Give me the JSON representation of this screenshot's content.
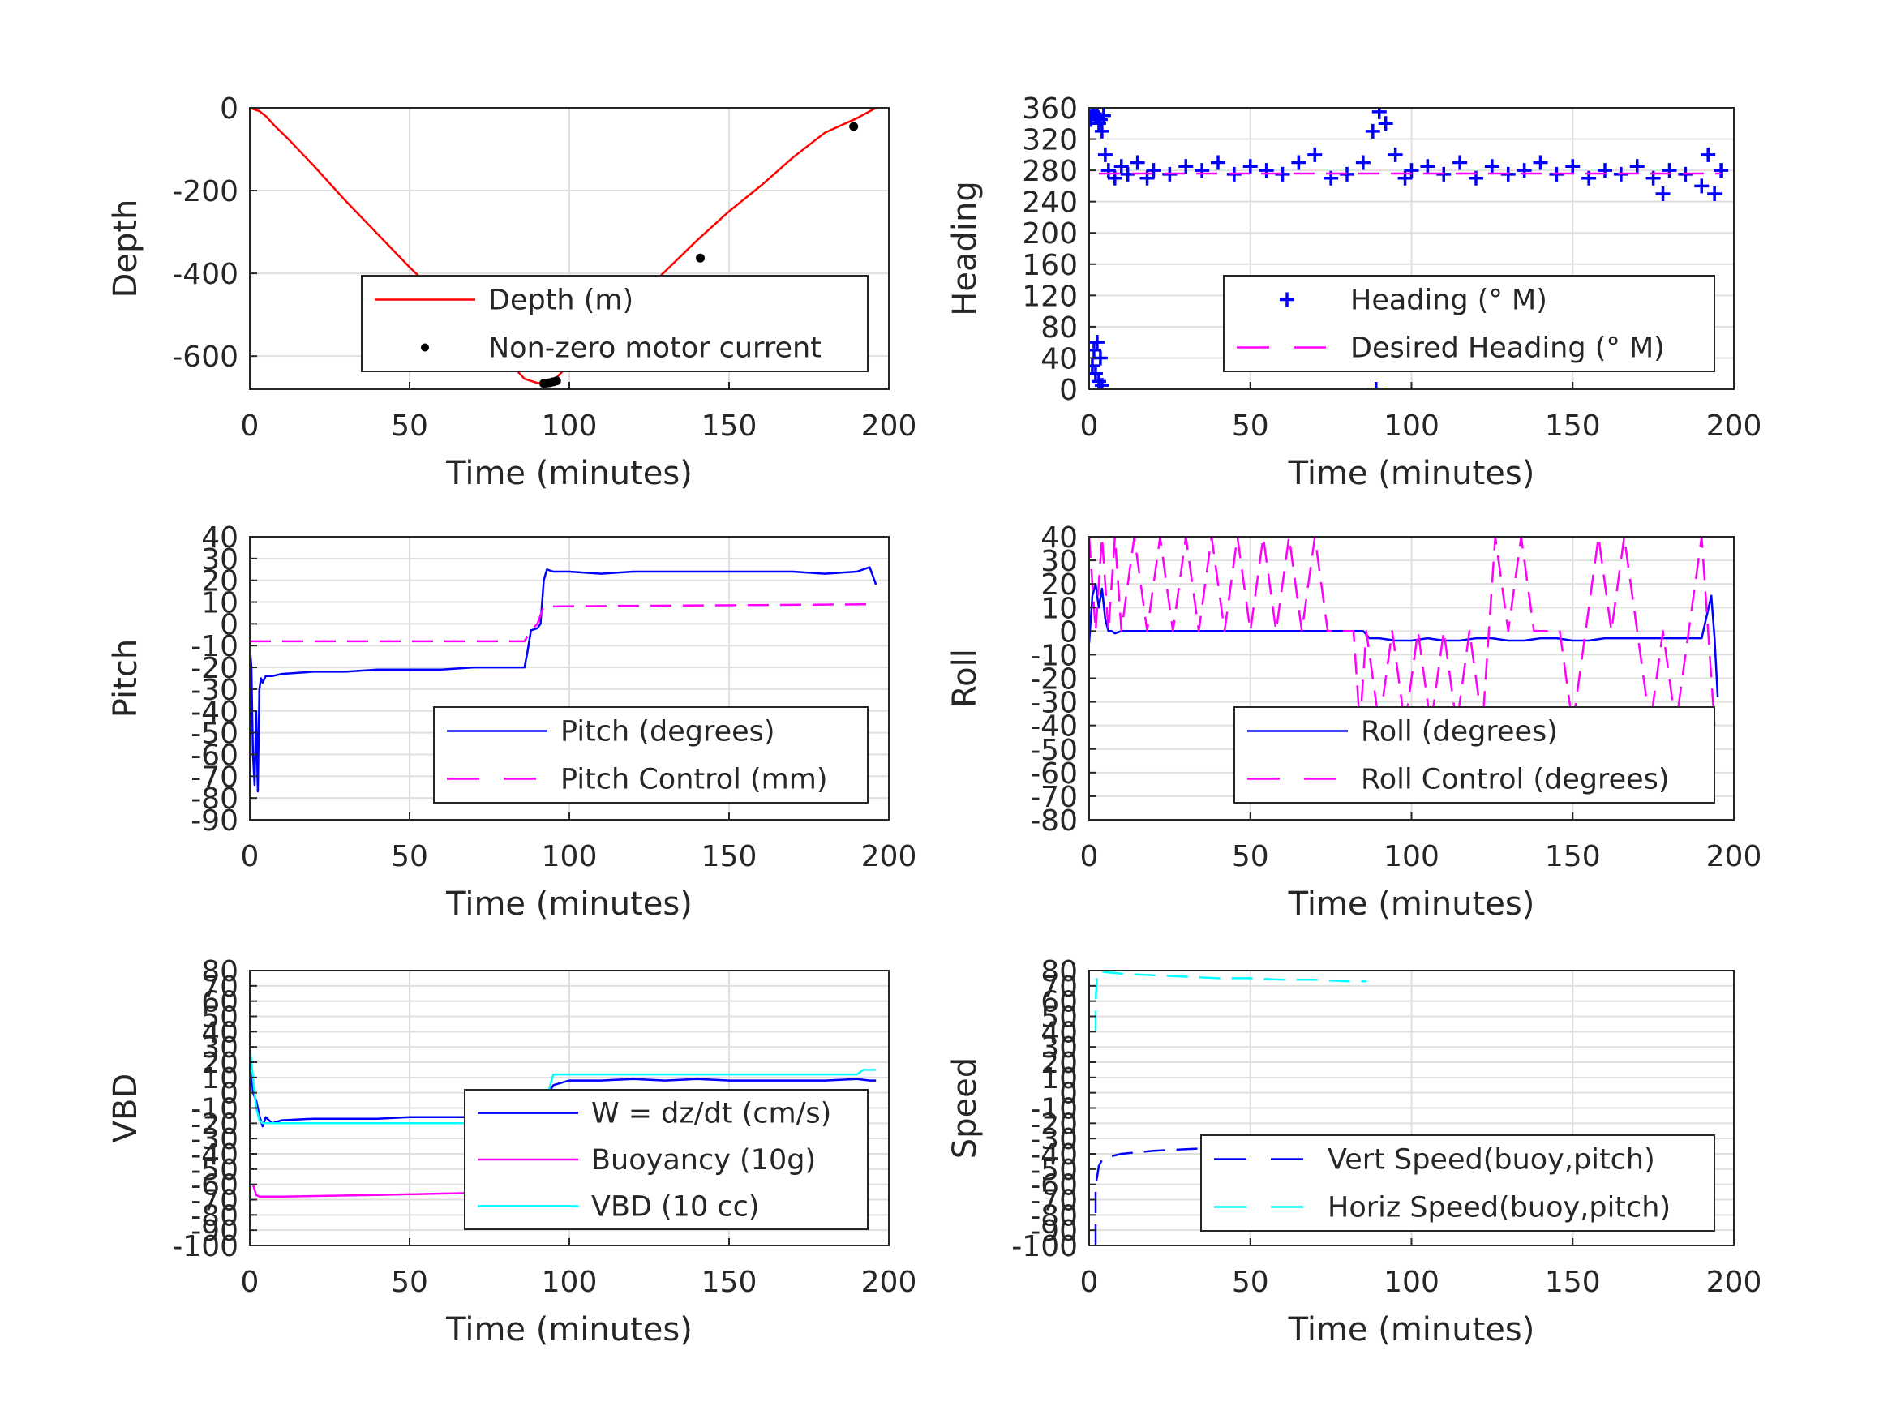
{
  "chart_data": [
    {
      "type": "line",
      "xlabel": "Time (minutes)",
      "ylabel": "Depth",
      "xlim": [
        0,
        200
      ],
      "ylim": [
        -680,
        0
      ],
      "xticks": [
        0,
        50,
        100,
        150,
        200
      ],
      "yticks": [
        -600,
        -400,
        -200,
        0
      ],
      "grid": true,
      "legend_position": "lower-right",
      "series": [
        {
          "name": "Depth (m)",
          "style": "solid",
          "color": "#ff0000",
          "x": [
            0,
            3,
            5,
            8,
            12,
            20,
            30,
            40,
            50,
            60,
            70,
            80,
            86,
            90,
            93,
            95,
            100,
            110,
            120,
            130,
            140,
            150,
            160,
            170,
            180,
            190,
            196
          ],
          "y": [
            0,
            -8,
            -20,
            -45,
            -75,
            -140,
            -225,
            -305,
            -385,
            -460,
            -535,
            -605,
            -655,
            -665,
            -668,
            -660,
            -620,
            -545,
            -470,
            -395,
            -320,
            -250,
            -188,
            -120,
            -60,
            -25,
            0
          ]
        },
        {
          "name": "Non-zero motor current",
          "style": "dots",
          "color": "#000000",
          "x": [
            92,
            93,
            94,
            95,
            96,
            141,
            189
          ],
          "y": [
            -666,
            -665,
            -664,
            -662,
            -660,
            -363,
            -45
          ]
        }
      ]
    },
    {
      "type": "line",
      "xlabel": "Time (minutes)",
      "ylabel": "Heading",
      "xlim": [
        0,
        200
      ],
      "ylim": [
        0,
        360
      ],
      "xticks": [
        0,
        50,
        100,
        150,
        200
      ],
      "yticks": [
        0,
        40,
        80,
        120,
        160,
        200,
        240,
        280,
        320,
        360
      ],
      "grid": true,
      "legend_position": "lower-right",
      "series": [
        {
          "name": "Heading (° M)",
          "style": "plus",
          "color": "#0000ff",
          "x": [
            0,
            0.5,
            1,
            1.5,
            2,
            2.5,
            3,
            3.5,
            4,
            1,
            1.5,
            2,
            2.5,
            3,
            3.5,
            4,
            4.5,
            5,
            6,
            8,
            10,
            12,
            15,
            18,
            20,
            25,
            30,
            35,
            40,
            45,
            50,
            55,
            60,
            65,
            70,
            75,
            80,
            85,
            88,
            90,
            92,
            95,
            98,
            100,
            105,
            110,
            115,
            120,
            125,
            130,
            135,
            140,
            145,
            150,
            155,
            160,
            165,
            170,
            175,
            178,
            180,
            185,
            190,
            192,
            194,
            196,
            89
          ],
          "y": [
            350,
            345,
            355,
            352,
            348,
            350,
            340,
            345,
            330,
            30,
            50,
            20,
            60,
            10,
            40,
            5,
            350,
            300,
            280,
            270,
            285,
            275,
            290,
            270,
            280,
            275,
            285,
            280,
            290,
            275,
            285,
            280,
            275,
            290,
            300,
            270,
            275,
            290,
            330,
            355,
            340,
            300,
            270,
            280,
            285,
            275,
            290,
            270,
            285,
            275,
            280,
            290,
            275,
            285,
            270,
            280,
            275,
            285,
            270,
            250,
            280,
            275,
            260,
            300,
            250,
            280,
            0
          ]
        },
        {
          "name": "Desired Heading (° M)",
          "style": "dashed",
          "color": "#ff00ff",
          "x": [
            3,
            196
          ],
          "y": [
            276,
            276
          ]
        }
      ]
    },
    {
      "type": "line",
      "xlabel": "Time (minutes)",
      "ylabel": "Pitch",
      "xlim": [
        0,
        200
      ],
      "ylim": [
        -90,
        40
      ],
      "xticks": [
        0,
        50,
        100,
        150,
        200
      ],
      "yticks": [
        -90,
        -80,
        -70,
        -60,
        -50,
        -40,
        -30,
        -20,
        -10,
        0,
        10,
        20,
        30,
        40
      ],
      "grid": true,
      "legend_position": "lower-right",
      "series": [
        {
          "name": "Pitch (degrees)",
          "style": "solid",
          "color": "#0000ff",
          "x": [
            0,
            0.5,
            1,
            1.5,
            2,
            2.5,
            3,
            3.5,
            4,
            5,
            7,
            10,
            20,
            30,
            40,
            50,
            60,
            70,
            80,
            86,
            87,
            88,
            90,
            91,
            92,
            93,
            95,
            100,
            110,
            120,
            130,
            140,
            150,
            160,
            170,
            180,
            190,
            194,
            196
          ],
          "y": [
            -10,
            -20,
            -60,
            -74,
            -40,
            -77,
            -30,
            -25,
            -27,
            -24,
            -24,
            -23,
            -22,
            -22,
            -21,
            -21,
            -21,
            -20,
            -20,
            -20,
            -12,
            -3,
            -2,
            0,
            20,
            25,
            24,
            24,
            23,
            24,
            24,
            24,
            24,
            24,
            24,
            23,
            24,
            26,
            18
          ]
        },
        {
          "name": "Pitch Control (mm)",
          "style": "dashed",
          "color": "#ff00ff",
          "x": [
            0,
            80,
            86,
            88,
            90,
            92,
            196
          ],
          "y": [
            -8,
            -8,
            -8,
            -3,
            0,
            8,
            9
          ]
        }
      ]
    },
    {
      "type": "line",
      "xlabel": "Time (minutes)",
      "ylabel": "Roll",
      "xlim": [
        0,
        200
      ],
      "ylim": [
        -80,
        40
      ],
      "xticks": [
        0,
        50,
        100,
        150,
        200
      ],
      "yticks": [
        -80,
        -70,
        -60,
        -50,
        -40,
        -30,
        -20,
        -10,
        0,
        10,
        20,
        30,
        40
      ],
      "grid": true,
      "legend_position": "lower-right",
      "series": [
        {
          "name": "Roll (degrees)",
          "style": "solid",
          "color": "#0000ff",
          "x": [
            0,
            1,
            2,
            3,
            4,
            5,
            6,
            7,
            8,
            10,
            15,
            20,
            25,
            30,
            35,
            40,
            45,
            50,
            55,
            60,
            65,
            70,
            75,
            80,
            85,
            87,
            90,
            95,
            100,
            105,
            110,
            115,
            120,
            125,
            130,
            135,
            140,
            145,
            150,
            155,
            160,
            165,
            170,
            175,
            180,
            185,
            190,
            193,
            194,
            195
          ],
          "y": [
            -5,
            15,
            20,
            10,
            18,
            5,
            0,
            0,
            -1,
            0,
            0,
            0,
            0,
            0,
            0,
            0,
            0,
            0,
            0,
            0,
            0,
            0,
            0,
            0,
            0,
            -3,
            -3,
            -4,
            -4,
            -3,
            -4,
            -4,
            -3,
            -3,
            -4,
            -4,
            -3,
            -3,
            -4,
            -4,
            -3,
            -3,
            -3,
            -3,
            -3,
            -3,
            -3,
            15,
            -3,
            -28
          ]
        },
        {
          "name": "Roll Control (degrees)",
          "style": "dashed",
          "color": "#ff00ff",
          "x": [
            0,
            2,
            4,
            6,
            8,
            10,
            14,
            18,
            22,
            26,
            30,
            34,
            38,
            42,
            46,
            50,
            54,
            58,
            62,
            66,
            70,
            74,
            78,
            82,
            84,
            86,
            90,
            94,
            98,
            102,
            106,
            110,
            114,
            118,
            122,
            126,
            130,
            134,
            138,
            142,
            146,
            150,
            154,
            158,
            162,
            166,
            170,
            174,
            178,
            182,
            186,
            190,
            194
          ],
          "y": [
            40,
            0,
            40,
            0,
            40,
            0,
            40,
            0,
            40,
            0,
            40,
            0,
            40,
            0,
            40,
            0,
            40,
            0,
            40,
            0,
            40,
            0,
            0,
            0,
            -40,
            0,
            -40,
            0,
            -40,
            0,
            -40,
            0,
            -40,
            0,
            -40,
            40,
            0,
            40,
            0,
            0,
            0,
            -40,
            0,
            40,
            0,
            40,
            0,
            -40,
            0,
            -40,
            0,
            40,
            -40
          ]
        }
      ]
    },
    {
      "type": "line",
      "xlabel": "Time (minutes)",
      "ylabel": "VBD",
      "xlim": [
        0,
        200
      ],
      "ylim": [
        -100,
        80
      ],
      "xticks": [
        0,
        50,
        100,
        150,
        200
      ],
      "yticks": [
        -100,
        -90,
        -80,
        -70,
        -60,
        -50,
        -40,
        -30,
        -20,
        -10,
        0,
        10,
        20,
        30,
        40,
        50,
        60,
        70,
        80
      ],
      "grid": true,
      "legend_position": "lower-right",
      "series": [
        {
          "name": "W = dz/dt (cm/s)",
          "style": "solid",
          "color": "#0000ff",
          "x": [
            0,
            1,
            2,
            3,
            4,
            5,
            7,
            10,
            20,
            30,
            40,
            50,
            60,
            70,
            80,
            85,
            88,
            90,
            92,
            95,
            100,
            110,
            120,
            130,
            140,
            150,
            160,
            170,
            180,
            190,
            194,
            196
          ],
          "y": [
            30,
            0,
            -5,
            -15,
            -22,
            -16,
            -20,
            -18,
            -17,
            -17,
            -17,
            -16,
            -16,
            -16,
            -16,
            -16,
            -15,
            -12,
            -5,
            5,
            8,
            8,
            9,
            8,
            9,
            8,
            8,
            8,
            8,
            9,
            8,
            8
          ]
        },
        {
          "name": "Buoyancy (10g)",
          "style": "solid",
          "color": "#ff00ff",
          "x": [
            1,
            2,
            3,
            10,
            40,
            60,
            86
          ],
          "y": [
            -60,
            -67,
            -68,
            -68,
            -67,
            -66,
            -65
          ]
        },
        {
          "name": "VBD (10 cc)",
          "style": "solid",
          "color": "#00ffff",
          "x": [
            0,
            1,
            2,
            3,
            4,
            10,
            30,
            50,
            80,
            88,
            92,
            95,
            100,
            150,
            190,
            192,
            196
          ],
          "y": [
            30,
            10,
            -10,
            -18,
            -20,
            -20,
            -20,
            -20,
            -20,
            -20,
            -10,
            12,
            12,
            12,
            12,
            15,
            15
          ]
        }
      ]
    },
    {
      "type": "line",
      "xlabel": "Time (minutes)",
      "ylabel": "Speed",
      "xlim": [
        0,
        200
      ],
      "ylim": [
        -100,
        80
      ],
      "xticks": [
        0,
        50,
        100,
        150,
        200
      ],
      "yticks": [
        -100,
        -90,
        -80,
        -70,
        -60,
        -50,
        -40,
        -30,
        -20,
        -10,
        0,
        10,
        20,
        30,
        40,
        50,
        60,
        70,
        80
      ],
      "grid": true,
      "legend_position": "lower-right",
      "series": [
        {
          "name": "Vert Speed(buoy,pitch)",
          "style": "dashed",
          "color": "#0000ff",
          "x": [
            2,
            2,
            2.5,
            3,
            4,
            6,
            10,
            20,
            30,
            40,
            50,
            60,
            70,
            80,
            86
          ],
          "y": [
            -100,
            -60,
            -55,
            -48,
            -44,
            -42,
            -40,
            -38,
            -37,
            -36,
            -36,
            -36,
            -35,
            -35,
            -35
          ]
        },
        {
          "name": "Horiz Speed(buoy,pitch)",
          "style": "dashed",
          "color": "#00ffff",
          "x": [
            2,
            2,
            2.5,
            3,
            5,
            10,
            20,
            30,
            40,
            50,
            60,
            70,
            80,
            86
          ],
          "y": [
            40,
            60,
            78,
            80,
            79,
            78,
            77,
            76,
            75,
            75,
            74,
            74,
            73,
            73
          ]
        }
      ]
    }
  ]
}
